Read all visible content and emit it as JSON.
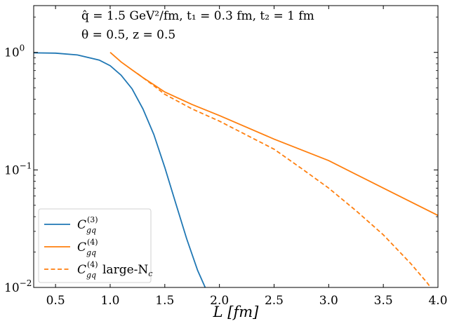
{
  "chart_data": {
    "type": "line",
    "annotations": [
      "q̂ = 1.5 GeV²/fm, t₁ = 0.3 fm, t₂ = 1 fm",
      "θ = 0.5, z = 0.5"
    ],
    "xlabel": "L [fm]",
    "ylabel": "",
    "xlim": [
      0.3,
      4.0
    ],
    "ylim": [
      0.01,
      2.5
    ],
    "yscale": "log",
    "grid": false,
    "legend_position": "lower-left",
    "x_ticks": [
      "0.5",
      "1.0",
      "1.5",
      "2.0",
      "2.5",
      "3.0",
      "3.5",
      "4.0"
    ],
    "y_ticks": [
      {
        "value": 1,
        "base": "10",
        "exp": "0"
      },
      {
        "value": 0.1,
        "base": "10",
        "exp": "−1"
      },
      {
        "value": 0.01,
        "base": "10",
        "exp": "−2"
      }
    ],
    "series": [
      {
        "name": "C_gq^(3)",
        "legend_main": "C",
        "legend_sub": "gq",
        "legend_sup": "(3)",
        "legend_suffix": "",
        "color": "#1f77b4",
        "dash": "solid",
        "points": [
          [
            0.3,
            0.99
          ],
          [
            0.5,
            0.985
          ],
          [
            0.7,
            0.95
          ],
          [
            0.9,
            0.86
          ],
          [
            1.0,
            0.77
          ],
          [
            1.1,
            0.64
          ],
          [
            1.2,
            0.49
          ],
          [
            1.3,
            0.33
          ],
          [
            1.4,
            0.2
          ],
          [
            1.5,
            0.105
          ],
          [
            1.6,
            0.052
          ],
          [
            1.7,
            0.026
          ],
          [
            1.8,
            0.014
          ],
          [
            1.88,
            0.0095
          ]
        ]
      },
      {
        "name": "C_gq^(4)",
        "legend_main": "C",
        "legend_sub": "gq",
        "legend_sup": "(4)",
        "legend_suffix": "",
        "color": "#ff7f0e",
        "dash": "solid",
        "points": [
          [
            1.0,
            1.0
          ],
          [
            1.1,
            0.83
          ],
          [
            1.2,
            0.71
          ],
          [
            1.3,
            0.61
          ],
          [
            1.4,
            0.53
          ],
          [
            1.5,
            0.46
          ],
          [
            1.75,
            0.36
          ],
          [
            2.0,
            0.29
          ],
          [
            2.5,
            0.183
          ],
          [
            3.0,
            0.12
          ],
          [
            3.5,
            0.07
          ],
          [
            4.0,
            0.041
          ]
        ]
      },
      {
        "name": "C_gq^(4) large-N_c",
        "legend_main": "C",
        "legend_sub": "gq",
        "legend_sup": "(4)",
        "legend_suffix": "large-N",
        "legend_suffix_sub": "c",
        "color": "#ff7f0e",
        "dash": "dashed",
        "points": [
          [
            1.25,
            0.66
          ],
          [
            1.4,
            0.52
          ],
          [
            1.5,
            0.44
          ],
          [
            1.75,
            0.33
          ],
          [
            2.0,
            0.26
          ],
          [
            2.5,
            0.15
          ],
          [
            2.75,
            0.103
          ],
          [
            3.0,
            0.07
          ],
          [
            3.25,
            0.045
          ],
          [
            3.5,
            0.028
          ],
          [
            3.75,
            0.016
          ],
          [
            3.9,
            0.011
          ],
          [
            3.95,
            0.0095
          ]
        ]
      }
    ]
  }
}
